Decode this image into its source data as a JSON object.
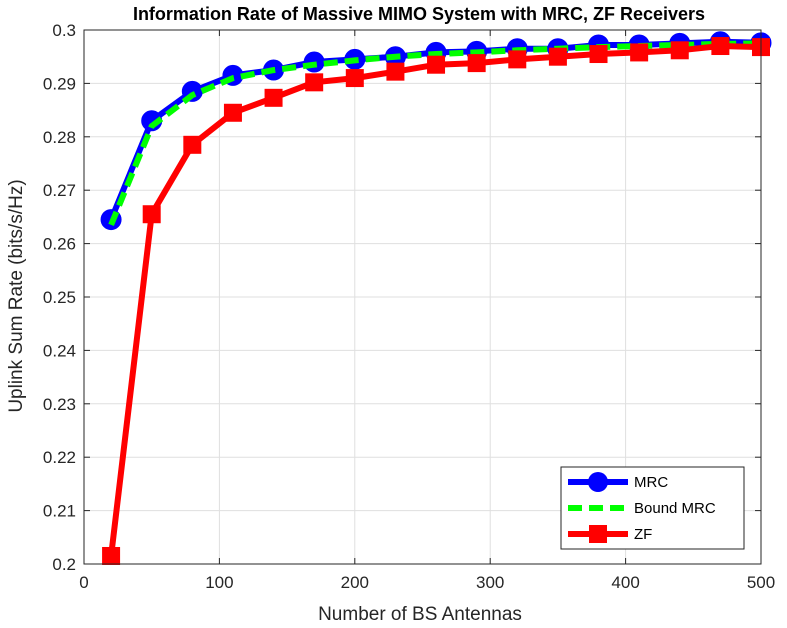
{
  "chart_data": {
    "type": "line",
    "title": "Information Rate of Massive MIMO System with MRC, ZF Receivers",
    "xlabel": "Number of BS Antennas",
    "ylabel": "Uplink Sum Rate (bits/s/Hz)",
    "xlim": [
      0,
      500
    ],
    "ylim": [
      0.2,
      0.3
    ],
    "xticks": [
      0,
      100,
      200,
      300,
      400,
      500
    ],
    "yticks": [
      0.2,
      0.21,
      0.22,
      0.23,
      0.24,
      0.25,
      0.26,
      0.27,
      0.28,
      0.29,
      0.3
    ],
    "ytick_labels": [
      "0.2",
      "0.21",
      "0.22",
      "0.23",
      "0.24",
      "0.25",
      "0.26",
      "0.27",
      "0.28",
      "0.29",
      "0.3"
    ],
    "grid": true,
    "legend_position": "bottom-right",
    "x": [
      20,
      50,
      80,
      110,
      140,
      170,
      200,
      230,
      260,
      290,
      320,
      350,
      380,
      410,
      440,
      470,
      500
    ],
    "series": [
      {
        "name": "MRC",
        "color": "#0000ff",
        "marker": "circle",
        "line": "solid",
        "values": [
          0.2645,
          0.283,
          0.2885,
          0.2915,
          0.2925,
          0.294,
          0.2945,
          0.295,
          0.2958,
          0.296,
          0.2965,
          0.2965,
          0.2972,
          0.2972,
          0.2975,
          0.2978,
          0.2976
        ]
      },
      {
        "name": "Bound MRC",
        "color": "#00ff00",
        "marker": "none",
        "line": "dashed",
        "values": [
          0.2635,
          0.282,
          0.2878,
          0.291,
          0.2925,
          0.2935,
          0.2943,
          0.295,
          0.2955,
          0.2958,
          0.2962,
          0.2965,
          0.2968,
          0.297,
          0.2972,
          0.2974,
          0.2975
        ]
      },
      {
        "name": "ZF",
        "color": "#ff0000",
        "marker": "square",
        "line": "solid",
        "values": [
          0.2015,
          0.2655,
          0.2785,
          0.2845,
          0.2873,
          0.2902,
          0.291,
          0.2922,
          0.2935,
          0.2938,
          0.2945,
          0.295,
          0.2955,
          0.2958,
          0.2962,
          0.297,
          0.2968
        ]
      }
    ]
  }
}
